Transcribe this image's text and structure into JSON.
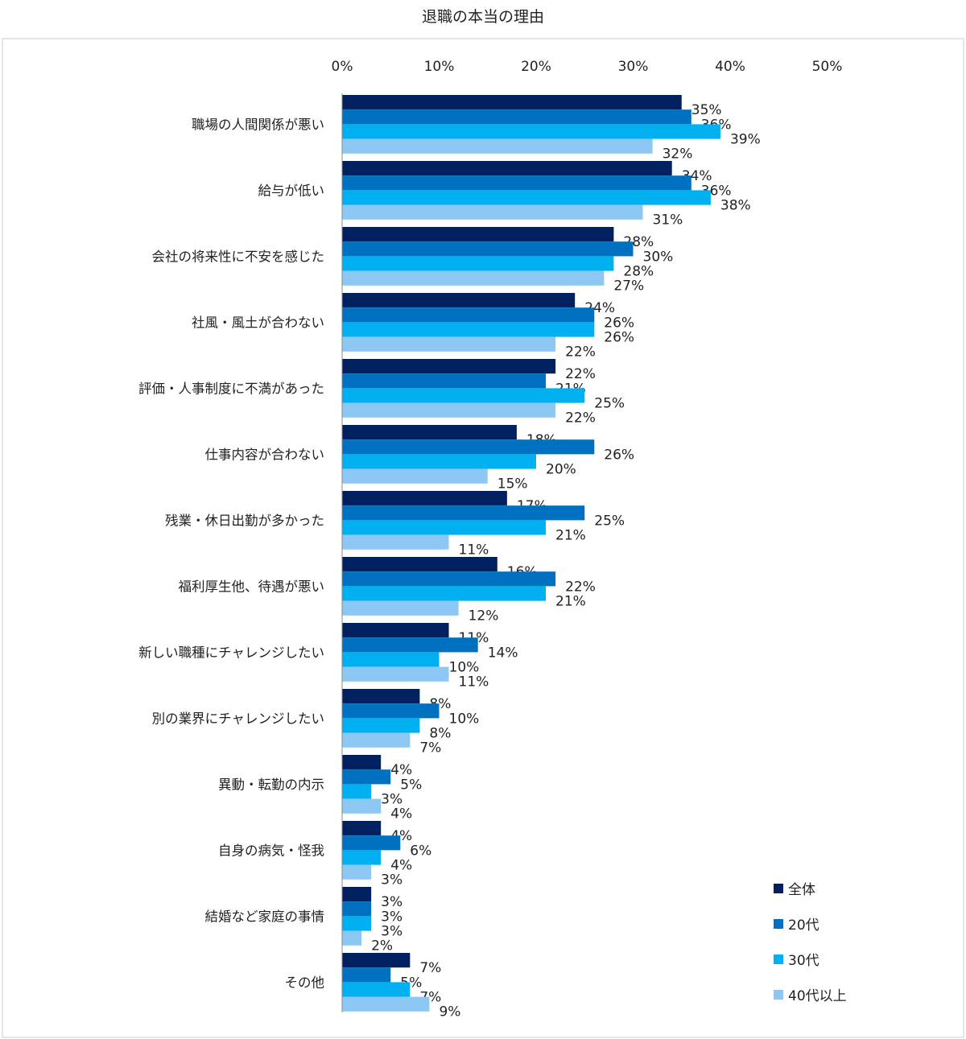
{
  "chart_data": {
    "type": "bar",
    "orientation": "horizontal",
    "title": "退職の本当の理由",
    "xlabel": "",
    "ylabel": "",
    "xlim": [
      0,
      50
    ],
    "xticks": [
      "0%",
      "10%",
      "20%",
      "30%",
      "40%",
      "50%"
    ],
    "tick_values": [
      0,
      10,
      20,
      30,
      40,
      50
    ],
    "grid": false,
    "legend_position": "bottom-right",
    "categories": [
      "職場の人間関係が悪い",
      "給与が低い",
      "会社の将来性に不安を感じた",
      "社風・風土が合わない",
      "評価・人事制度に不満があった",
      "仕事内容が合わない",
      "残業・休日出勤が多かった",
      "福利厚生他、待遇が悪い",
      "新しい職種にチャレンジしたい",
      "別の業界にチャレンジしたい",
      "異動・転勤の内示",
      "自身の病気・怪我",
      "結婚など家庭の事情",
      "その他"
    ],
    "series": [
      {
        "name": "全体",
        "color": "#002060",
        "values": [
          35,
          34,
          28,
          24,
          22,
          18,
          17,
          16,
          11,
          8,
          4,
          4,
          3,
          7
        ]
      },
      {
        "name": "20代",
        "color": "#0070C0",
        "values": [
          36,
          36,
          30,
          26,
          21,
          26,
          25,
          22,
          14,
          10,
          5,
          6,
          3,
          5
        ]
      },
      {
        "name": "30代",
        "color": "#00B0F0",
        "values": [
          39,
          38,
          28,
          26,
          25,
          20,
          21,
          21,
          10,
          8,
          3,
          4,
          3,
          7
        ]
      },
      {
        "name": "40代以上",
        "color": "#8DC8F4",
        "values": [
          32,
          31,
          27,
          22,
          22,
          15,
          11,
          12,
          11,
          7,
          4,
          3,
          2,
          9
        ]
      }
    ],
    "value_suffix": "%"
  }
}
